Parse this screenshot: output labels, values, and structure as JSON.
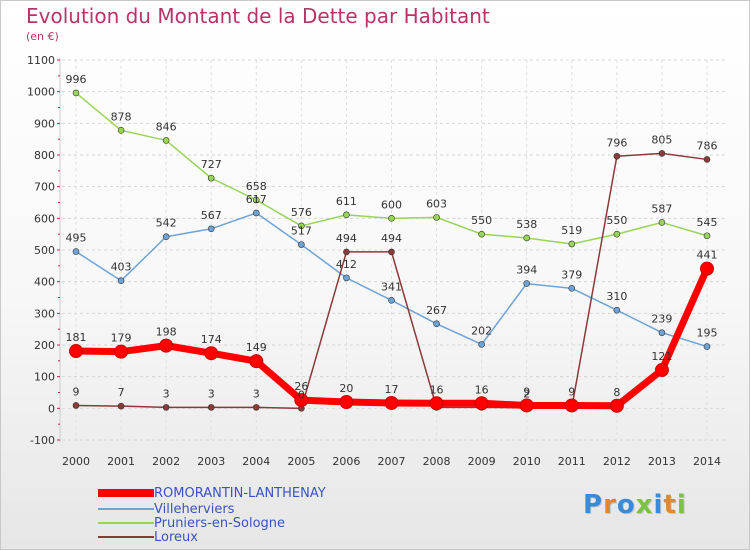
{
  "header": {
    "title": "Evolution du Montant de la Dette par Habitant",
    "unit": "(en €)"
  },
  "logo": {
    "text": "Proxiti",
    "colors": [
      "#3a8ad6",
      "#e2872a",
      "#3a8ad6",
      "#7cc242",
      "#3a8ad6",
      "#e2872a",
      "#7cc242"
    ]
  },
  "chart_data": {
    "type": "line",
    "title": "Evolution du Montant de la Dette par Habitant",
    "subtitle": "(en €)",
    "xlabel": "",
    "ylabel": "",
    "categories": [
      "2000",
      "2001",
      "2002",
      "2003",
      "2004",
      "2005",
      "2006",
      "2007",
      "2008",
      "2009",
      "2010",
      "2011",
      "2012",
      "2013",
      "2014"
    ],
    "ylim": [
      -100,
      1100
    ],
    "yticks": [
      "-100",
      "0",
      "100",
      "200",
      "300",
      "400",
      "500",
      "600",
      "700",
      "800",
      "900",
      "1000",
      "1100"
    ],
    "grid": true,
    "legend_position": "bottom-left",
    "series": [
      {
        "name": "ROMORANTIN-LANTHENAY",
        "color": "#ff0000",
        "values": [
          181,
          179,
          198,
          174,
          149,
          26,
          20,
          17,
          16,
          16,
          9,
          9,
          8,
          121,
          441
        ],
        "labels": [
          "181",
          "179",
          "198",
          "174",
          "149",
          "26",
          "20",
          "17",
          "16",
          "16",
          "9",
          "9",
          "8",
          "121",
          "441"
        ]
      },
      {
        "name": "Villeherviers",
        "color": "#6ea3d8",
        "values": [
          495,
          403,
          542,
          567,
          617,
          517,
          412,
          341,
          267,
          202,
          394,
          379,
          310,
          239,
          195
        ],
        "labels": [
          "495",
          "403",
          "542",
          "567",
          "617",
          "517",
          "412",
          "341",
          "267",
          "202",
          "394",
          "379",
          "310",
          "239",
          "195"
        ]
      },
      {
        "name": "Pruniers-en-Sologne",
        "color": "#98d45a",
        "values": [
          996,
          878,
          846,
          727,
          658,
          576,
          611,
          600,
          603,
          550,
          538,
          519,
          550,
          587,
          545
        ],
        "labels": [
          "996",
          "878",
          "846",
          "727",
          "658",
          "576",
          "611",
          "600",
          "603",
          "550",
          "538",
          "519",
          "550",
          "587",
          "545"
        ]
      },
      {
        "name": "Loreux",
        "color": "#8b3a3a",
        "values": [
          9,
          7,
          3,
          3,
          3,
          0,
          494,
          494,
          3,
          3,
          2,
          2,
          796,
          805,
          786
        ],
        "labels": [
          "9",
          "7",
          "3",
          "3",
          "3",
          "0",
          "494",
          "494",
          "",
          "",
          "2",
          "",
          "796",
          "805",
          "786"
        ]
      }
    ]
  }
}
